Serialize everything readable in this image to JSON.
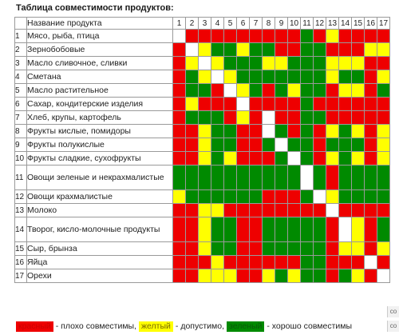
{
  "title": "Таблица совместимости продуктов:",
  "header_label": "Название продукта",
  "col_numbers": [
    "1",
    "2",
    "3",
    "4",
    "5",
    "6",
    "7",
    "8",
    "9",
    "10",
    "11",
    "12",
    "13",
    "14",
    "15",
    "16",
    "17"
  ],
  "colors": {
    "r": "#ee0000",
    "y": "#ffff00",
    "g": "#008a00",
    "w": "#ffffff"
  },
  "rows": [
    {
      "num": "1",
      "name": "Мясо, рыба, птица",
      "cells": "wrrrrrrrrrgryrrrr"
    },
    {
      "num": "2",
      "name": "Зернобобовые",
      "cells": "rwyggyggrrggrrryy"
    },
    {
      "num": "3",
      "name": "Масло сливочное, сливки",
      "cells": "rywygggyygggyyyrr"
    },
    {
      "num": "4",
      "name": "Сметана",
      "cells": "rgywygggggggyggry"
    },
    {
      "num": "5",
      "name": "Масло растительное",
      "cells": "rggrwygrgyggryyrg"
    },
    {
      "num": "6",
      "name": "Сахар, кондитерские изделия",
      "cells": "ryrrrwrrrrgrrrrrr"
    },
    {
      "num": "7",
      "name": "Хлеб, крупы, картофель",
      "cells": "rgggryrwrrggrrrrr"
    },
    {
      "num": "8",
      "name": "Фрукты кислые, помидоры",
      "cells": "rryggrrwgrgrygyry"
    },
    {
      "num": "9",
      "name": "Фрукты полукислые",
      "cells": "rryggrrgwggrgggry"
    },
    {
      "num": "10",
      "name": "Фрукты сладкие, сухофрукты",
      "cells": "rrygyrrrgwgrygyry"
    },
    {
      "num": "11",
      "name": "Овощи зеленые и некрахмалистые",
      "cells": "ggggggggggwgrgggg"
    },
    {
      "num": "12",
      "name": "Овощи крахмалистые",
      "cells": "yggggggrrrgwygggg"
    },
    {
      "num": "13",
      "name": "Молоко",
      "cells": "rryyrrrrrrrrwrrrr"
    },
    {
      "num": "14",
      "name": "Творог, кисло-молочные продукты",
      "cells": "rryggrrgggggrwyrg"
    },
    {
      "num": "15",
      "name": "Сыр, брынза",
      "cells": "rryggrrgggggryyry"
    },
    {
      "num": "16",
      "name": "Яйца",
      "cells": "rrryrrrrrrggrrrwr"
    },
    {
      "num": "17",
      "name": "Орехи",
      "cells": "rryyyrrygyggrgyrw"
    }
  ],
  "legend": {
    "red_label": "красный",
    "red_desc": "- плохо совместимы,",
    "yellow_label": "желтый",
    "yellow_desc": "- допустимо,",
    "green_label": "зеленый",
    "green_desc": "- хорошо совместимы"
  },
  "edge_top": "co",
  "edge_bottom": "co"
}
